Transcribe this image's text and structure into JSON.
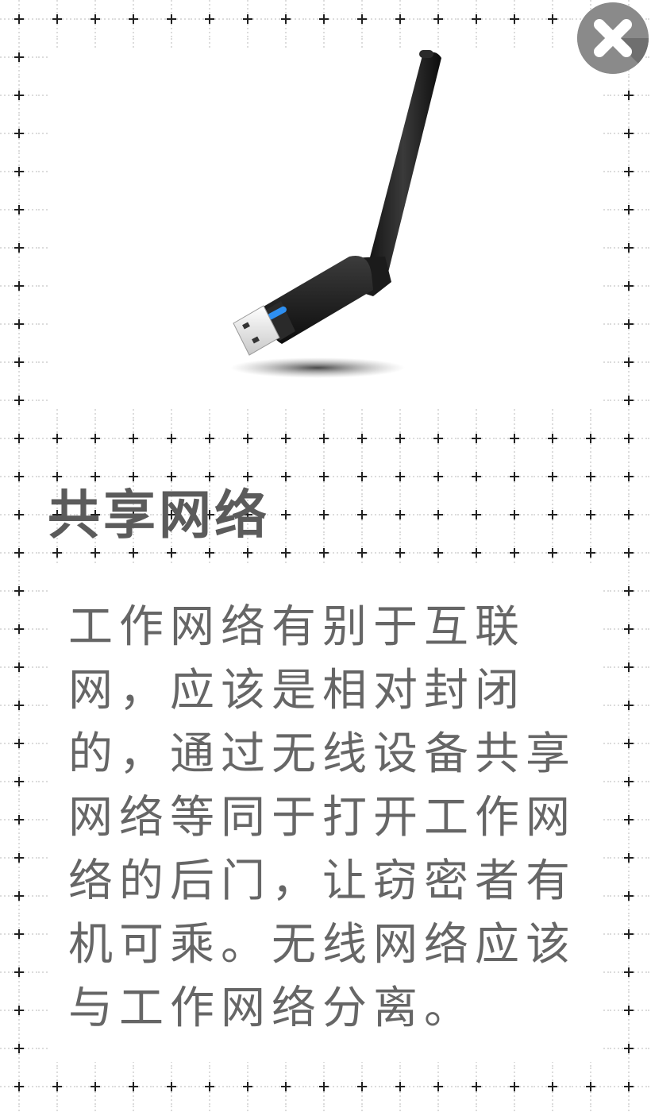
{
  "close_button": {
    "icon": "close-icon",
    "color": "#8a8a8a"
  },
  "product": {
    "icon": "usb-wifi-adapter-icon",
    "led_color": "#2e8ff0"
  },
  "content": {
    "title": "共享网络",
    "body": "工作网络有别于互联\n网，应该是相对封闭\n的，通过无线设备共享\n网络等同于打开工作网\n络的后门，让窃密者有\n机可乘。无线网络应该\n与工作网络分离。"
  },
  "colors": {
    "title": "#5b5b5b",
    "body": "#666666",
    "grid": "#b5b5b5",
    "background": "#ffffff"
  }
}
